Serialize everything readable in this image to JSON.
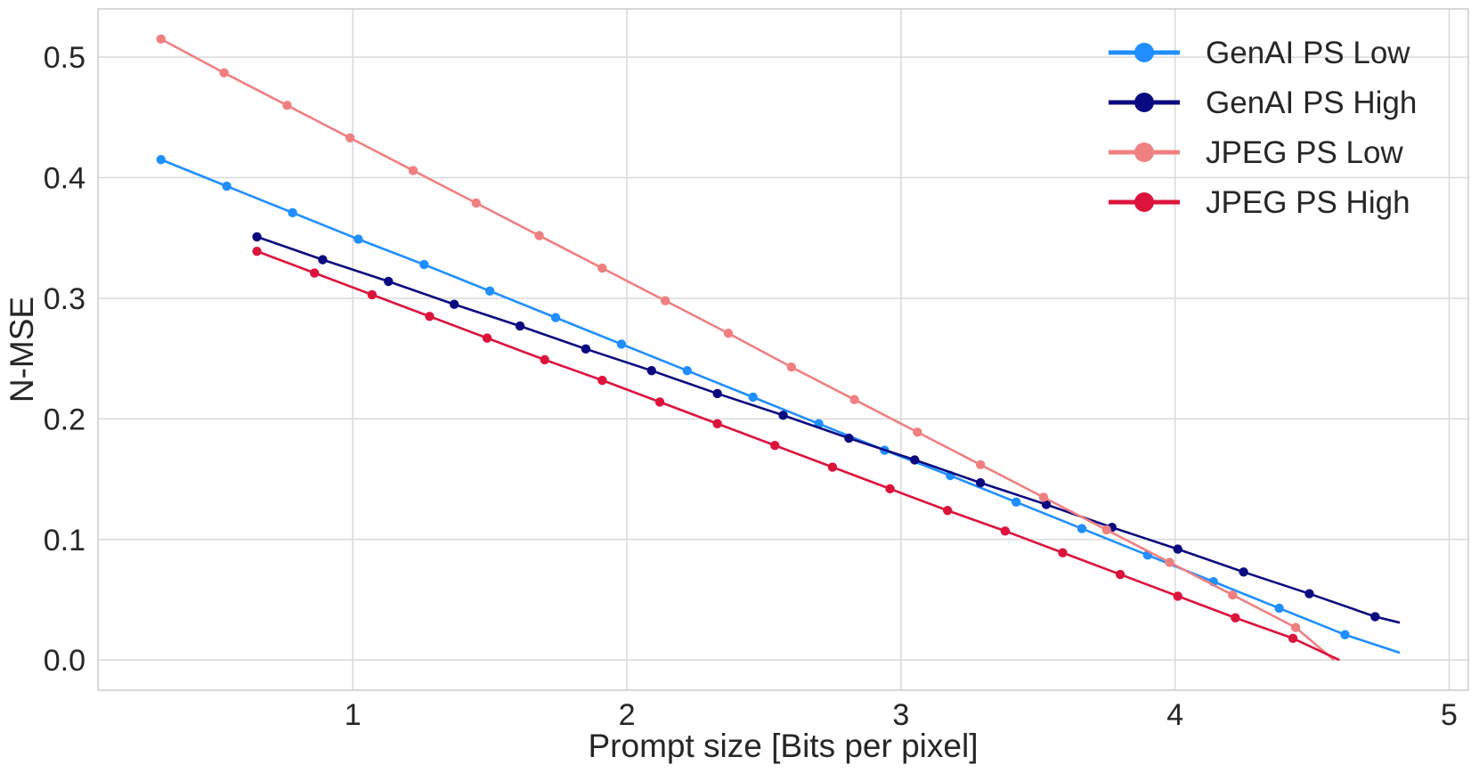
{
  "chart_data": {
    "type": "line",
    "title": "",
    "xlabel": "Prompt size [Bits per pixel]",
    "ylabel": "N-MSE",
    "xlim": [
      0.07,
      5.07
    ],
    "ylim": [
      -0.025,
      0.54
    ],
    "xticks": [
      1,
      2,
      3,
      4,
      5
    ],
    "xtick_labels": [
      "1",
      "2",
      "3",
      "4",
      "5"
    ],
    "yticks": [
      0.0,
      0.1,
      0.2,
      0.3,
      0.4,
      0.5
    ],
    "ytick_labels": [
      "0.0",
      "0.1",
      "0.2",
      "0.3",
      "0.4",
      "0.5"
    ],
    "grid": true,
    "legend_position": "top-right",
    "series": [
      {
        "name": "GenAI PS Low",
        "color": "#1f8fff",
        "line_end": [
          4.82,
          0.006
        ],
        "x": [
          0.3,
          0.54,
          0.78,
          1.02,
          1.26,
          1.5,
          1.74,
          1.98,
          2.22,
          2.46,
          2.7,
          2.94,
          3.18,
          3.42,
          3.66,
          3.9,
          4.14,
          4.38,
          4.62
        ],
        "y": [
          0.415,
          0.393,
          0.371,
          0.349,
          0.328,
          0.306,
          0.284,
          0.262,
          0.24,
          0.218,
          0.196,
          0.174,
          0.153,
          0.131,
          0.109,
          0.087,
          0.065,
          0.043,
          0.021
        ]
      },
      {
        "name": "GenAI PS High",
        "color": "#0a0a80",
        "line_end": [
          4.82,
          0.031
        ],
        "x": [
          0.65,
          0.89,
          1.13,
          1.37,
          1.61,
          1.85,
          2.09,
          2.33,
          2.57,
          2.81,
          3.05,
          3.29,
          3.53,
          3.77,
          4.01,
          4.25,
          4.49,
          4.73
        ],
        "y": [
          0.351,
          0.332,
          0.314,
          0.295,
          0.277,
          0.258,
          0.24,
          0.221,
          0.203,
          0.184,
          0.166,
          0.147,
          0.129,
          0.11,
          0.092,
          0.073,
          0.055,
          0.036
        ]
      },
      {
        "name": "JPEG PS Low",
        "color": "#f08080",
        "line_end": [
          4.58,
          0.0
        ],
        "x": [
          0.3,
          0.53,
          0.76,
          0.99,
          1.22,
          1.45,
          1.68,
          1.91,
          2.14,
          2.37,
          2.6,
          2.83,
          3.06,
          3.29,
          3.52,
          3.75,
          3.98,
          4.21,
          4.44
        ],
        "y": [
          0.515,
          0.487,
          0.46,
          0.433,
          0.406,
          0.379,
          0.352,
          0.325,
          0.298,
          0.271,
          0.243,
          0.216,
          0.189,
          0.162,
          0.135,
          0.108,
          0.081,
          0.054,
          0.027
        ]
      },
      {
        "name": "JPEG PS High",
        "color": "#dc143c",
        "line_end": [
          4.6,
          0.0
        ],
        "x": [
          0.65,
          0.86,
          1.07,
          1.28,
          1.49,
          1.7,
          1.91,
          2.12,
          2.33,
          2.54,
          2.75,
          2.96,
          3.17,
          3.38,
          3.59,
          3.8,
          4.01,
          4.22,
          4.43
        ],
        "y": [
          0.339,
          0.321,
          0.303,
          0.285,
          0.267,
          0.249,
          0.232,
          0.214,
          0.196,
          0.178,
          0.16,
          0.142,
          0.124,
          0.107,
          0.089,
          0.071,
          0.053,
          0.035,
          0.018
        ]
      }
    ]
  }
}
